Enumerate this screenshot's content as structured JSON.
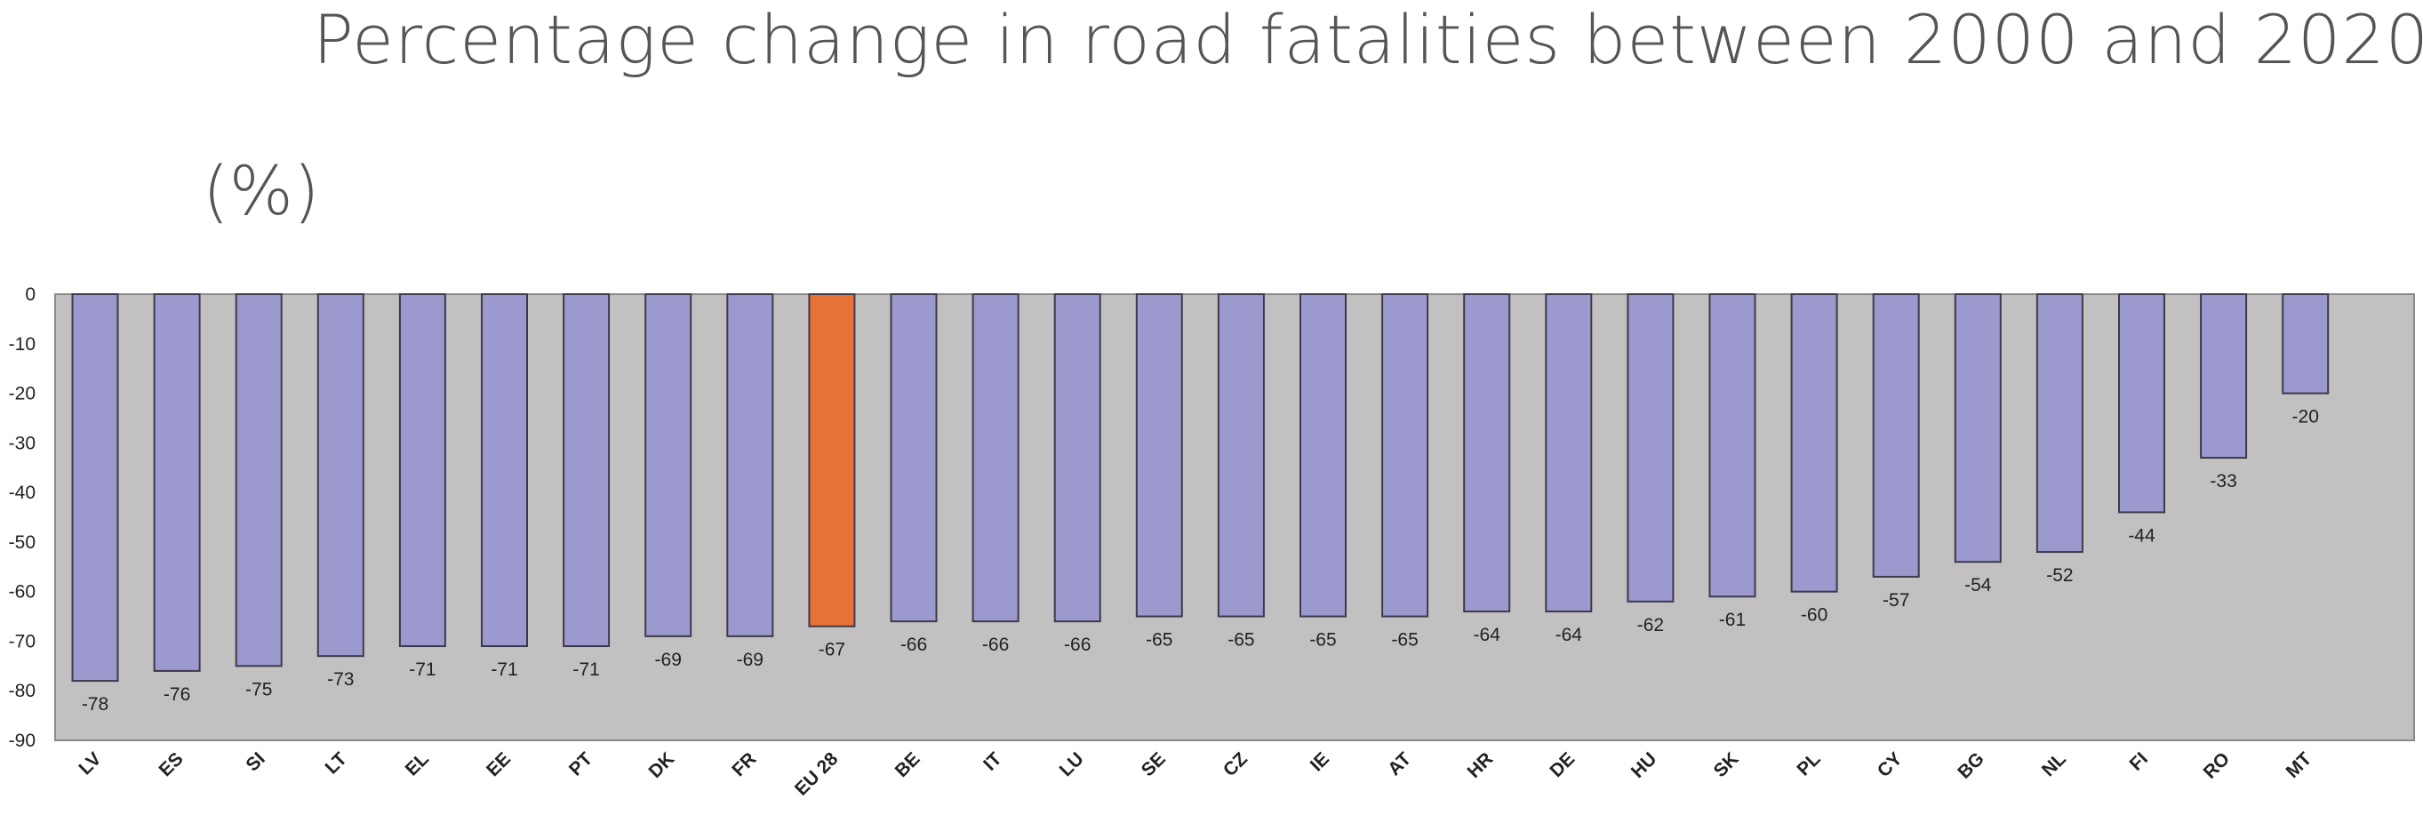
{
  "chart_data": {
    "type": "bar",
    "title": "Percentage change in road fatalities between 2000 and 2020",
    "ylabel": "(%)",
    "categories": [
      "LV",
      "ES",
      "SI",
      "LT",
      "EL",
      "EE",
      "PT",
      "DK",
      "FR",
      "EU 28",
      "BE",
      "IT",
      "LU",
      "SE",
      "CZ",
      "IE",
      "AT",
      "HR",
      "DE",
      "HU",
      "SK",
      "PL",
      "CY",
      "BG",
      "NL",
      "FI",
      "RO",
      "MT"
    ],
    "values": [
      -78,
      -76,
      -75,
      -73,
      -71,
      -71,
      -71,
      -69,
      -69,
      -67,
      -66,
      -66,
      -66,
      -65,
      -65,
      -65,
      -65,
      -64,
      -64,
      -62,
      -61,
      -60,
      -57,
      -54,
      -52,
      -44,
      -33,
      -20
    ],
    "data_labels": [
      "-78",
      "-76",
      "-75",
      "-73",
      "-71",
      "-71",
      "-71",
      "-69",
      "-69",
      "-67",
      "-66",
      "-66",
      "-66",
      "-65",
      "-65",
      "-65",
      "-65",
      "-64",
      "-64",
      "-62",
      "-61",
      "-60",
      "-57",
      "-54",
      "-52",
      "-44",
      "-33",
      "-20"
    ],
    "highlight": "EU 28",
    "ylim": [
      -90,
      0
    ],
    "yticks": [
      "0",
      "-10",
      "-20",
      "-30",
      "-40",
      "-50",
      "-60",
      "-70",
      "-80",
      "-90"
    ],
    "grid": false,
    "legend": "none",
    "colors": {
      "bar": "#9b99cd",
      "highlight": "#e77235",
      "plot_background": "#c2c0c0",
      "bar_stroke": "#3d3a4a"
    }
  }
}
